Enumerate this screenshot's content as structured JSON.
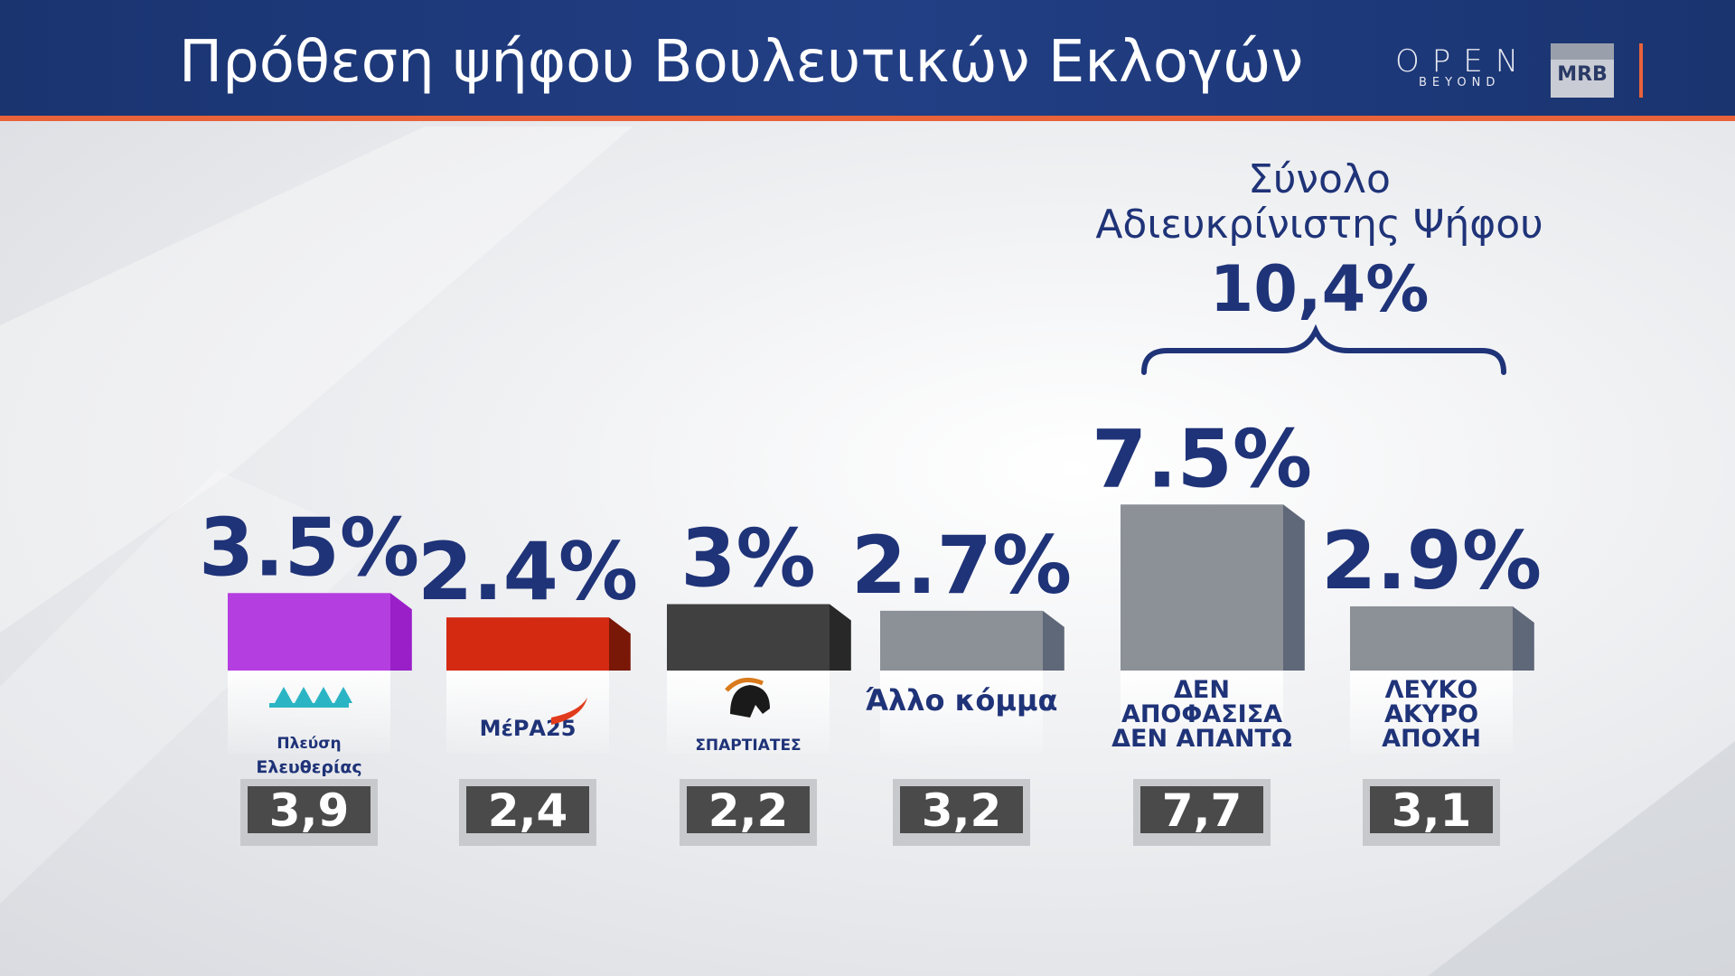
{
  "header": {
    "title": "Πρόθεση ψήφου Βουλευτικών Εκλογών",
    "open_logo": "OPEN",
    "open_sub": "BEYOND",
    "mrb_logo": "MRB"
  },
  "summary": {
    "line1": "Σύνολο",
    "line2": "Αδιευκρίνιστης Ψήφου",
    "value": "10,4%"
  },
  "chart_data": {
    "type": "bar",
    "categories": [
      "Πλεύση Ελευθερίας",
      "ΜέΡΑ25",
      "ΣΠΑΡΤΙΑΤΕΣ",
      "Άλλο κόμμα",
      "ΔΕΝ ΑΠΟΦΑΣΙΣΑ ΔΕΝ ΑΠΑΝΤΩ",
      "ΛΕΥΚΟ ΑΚΥΡΟ ΑΠΟΧΗ"
    ],
    "values": [
      3.5,
      2.4,
      3,
      2.7,
      7.5,
      2.9
    ],
    "value_labels": [
      "3.5%",
      "2.4%",
      "3%",
      "2.7%",
      "7.5%",
      "2.9%"
    ],
    "previous_values": [
      3.9,
      2.4,
      2.2,
      3.2,
      7.7,
      3.1
    ],
    "previous_labels": [
      "3,9",
      "2,4",
      "2,2",
      "3,2",
      "7,7",
      "3,1"
    ],
    "colors": [
      "#b53ee0",
      "#d42a12",
      "#404040",
      "#8c9097",
      "#8c9097",
      "#8c9097"
    ],
    "side_colors": [
      "#9a1fc8",
      "#7a1808",
      "#282828",
      "#5f6878",
      "#5f6878",
      "#5f6878"
    ],
    "logo_texts": [
      [
        "Πλεύση",
        "Ελευθερίας"
      ],
      [
        "ΜέΡΑ25"
      ],
      [
        "ΣΠΑΡΤΙΑΤΕΣ"
      ],
      [
        "Άλλο κόμμα"
      ],
      [
        "ΔΕΝ",
        "ΑΠΟΦΑΣΙΣΑ",
        "ΔΕΝ ΑΠΑΝΤΩ"
      ],
      [
        "ΛΕΥΚΟ",
        "ΑΚΥΡΟ",
        "ΑΠΟΧΗ"
      ]
    ]
  }
}
